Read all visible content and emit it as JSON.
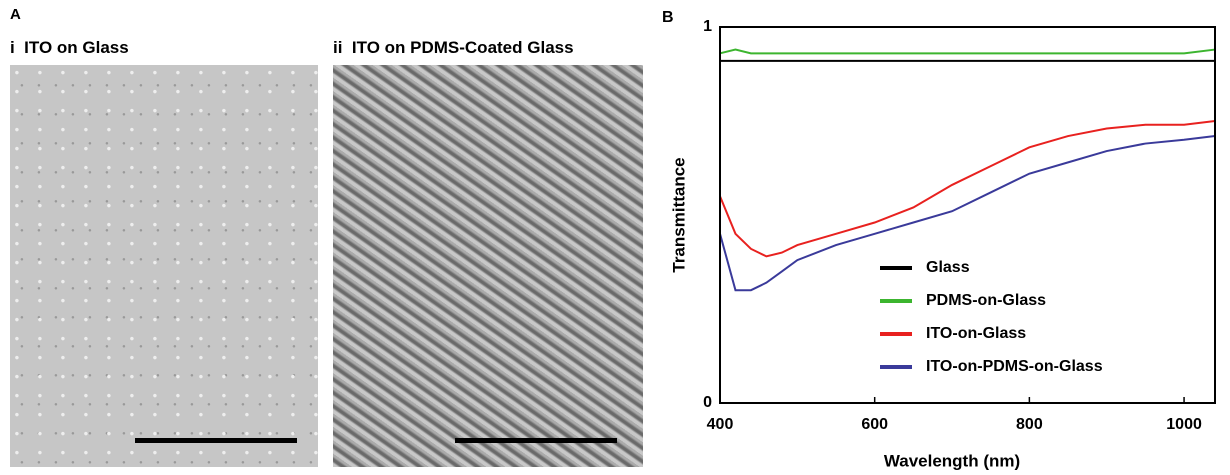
{
  "panels": {
    "a_label": "A",
    "i_title": "i  ITO on Glass",
    "ii_title": "ii  ITO on PDMS-Coated Glass"
  },
  "chart_data": {
    "type": "line",
    "panel_label": "B",
    "x_label": "Wavelength (nm)",
    "y_label": "Transmittance",
    "x": [
      400,
      420,
      440,
      460,
      480,
      500,
      550,
      600,
      650,
      700,
      750,
      800,
      850,
      900,
      950,
      1000,
      1040
    ],
    "series": [
      {
        "name": "Glass",
        "color": "#000000",
        "values": [
          0.91,
          0.91,
          0.91,
          0.91,
          0.91,
          0.91,
          0.91,
          0.91,
          0.91,
          0.91,
          0.91,
          0.91,
          0.91,
          0.91,
          0.91,
          0.91,
          0.91
        ]
      },
      {
        "name": "PDMS-on-Glass",
        "color": "#3cb52f",
        "values": [
          0.93,
          0.94,
          0.93,
          0.93,
          0.93,
          0.93,
          0.93,
          0.93,
          0.93,
          0.93,
          0.93,
          0.93,
          0.93,
          0.93,
          0.93,
          0.93,
          0.94
        ]
      },
      {
        "name": "ITO-on-Glass",
        "color": "#e8211f",
        "values": [
          0.55,
          0.45,
          0.41,
          0.39,
          0.4,
          0.42,
          0.45,
          0.48,
          0.52,
          0.58,
          0.63,
          0.68,
          0.71,
          0.73,
          0.74,
          0.74,
          0.75
        ]
      },
      {
        "name": "ITO-on-PDMS-on-Glass",
        "color": "#3a3a9a",
        "values": [
          0.45,
          0.3,
          0.3,
          0.32,
          0.35,
          0.38,
          0.42,
          0.45,
          0.48,
          0.51,
          0.56,
          0.61,
          0.64,
          0.67,
          0.69,
          0.7,
          0.71
        ]
      }
    ],
    "xlim": [
      400,
      1040
    ],
    "ylim": [
      0,
      1
    ],
    "xticks": [
      400,
      600,
      800,
      1000
    ],
    "yticks": [
      0,
      1
    ],
    "legend": "lower right"
  }
}
